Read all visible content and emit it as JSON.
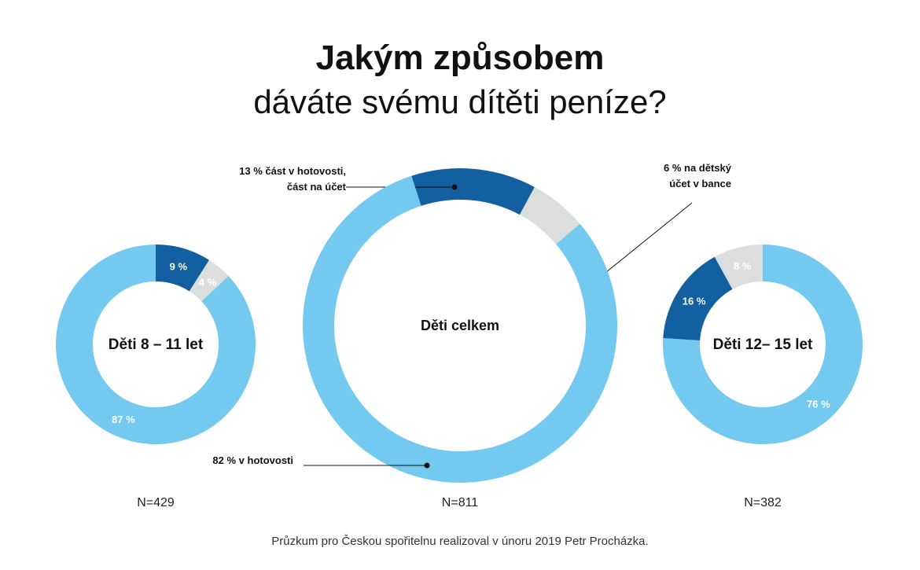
{
  "header": {
    "title": "Jakým způsobem",
    "subtitle": "dáváte svému dítěti peníze?"
  },
  "footer": {
    "note": "Průzkum pro Českou spořitelnu realizoval v únoru 2019 Petr Procházka."
  },
  "colors": {
    "cash": "#74C9F0",
    "split": "#1260A0",
    "account": "#DCDDDD"
  },
  "chart_data": [
    {
      "type": "pie",
      "title": "Děti 8 – 11 let",
      "n_label": "N=429",
      "slices": [
        {
          "key": "split",
          "value": 9,
          "label": "9 %"
        },
        {
          "key": "account",
          "value": 4,
          "label": "4 %"
        },
        {
          "key": "cash",
          "value": 87,
          "label": "87  %"
        }
      ]
    },
    {
      "type": "pie",
      "title": "Děti celkem",
      "n_label": "N=811",
      "slices": [
        {
          "key": "split",
          "value": 13,
          "label": "13 % část v hotovosti,\nčást na účet"
        },
        {
          "key": "account",
          "value": 6,
          "label": "6 % na dětský\núčet v bance"
        },
        {
          "key": "cash",
          "value": 82,
          "label": "82 % v hotovosti"
        }
      ]
    },
    {
      "type": "pie",
      "title": "Děti 12– 15 let",
      "n_label": "N=382",
      "slices": [
        {
          "key": "cash",
          "value": 76,
          "label": "76  %"
        },
        {
          "key": "split",
          "value": 16,
          "label": "16 %"
        },
        {
          "key": "account",
          "value": 8,
          "label": "8 %"
        }
      ]
    }
  ]
}
